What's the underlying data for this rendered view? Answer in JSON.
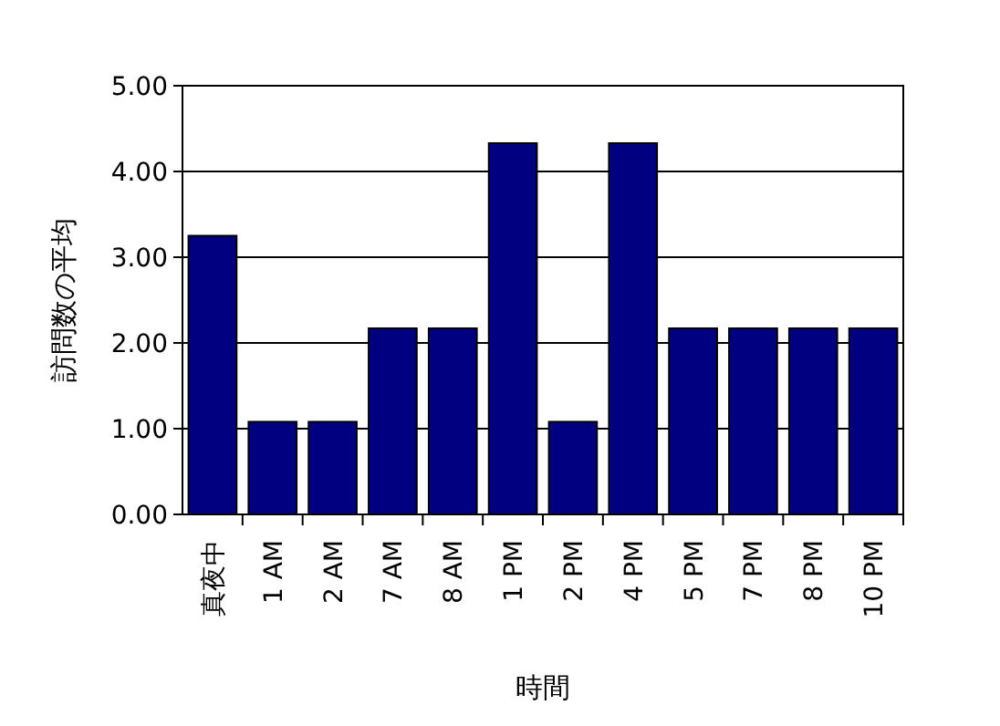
{
  "chart_data": {
    "type": "bar",
    "xlabel": "時間",
    "ylabel": "訪問数の平均",
    "categories": [
      "真夜中",
      "1 AM",
      "2 AM",
      "7 AM",
      "8 AM",
      "1 PM",
      "2 PM",
      "4 PM",
      "5 PM",
      "7 PM",
      "8 PM",
      "10 PM"
    ],
    "values": [
      3.25,
      1.08,
      1.08,
      2.17,
      2.17,
      4.33,
      1.08,
      4.33,
      2.17,
      2.17,
      2.17,
      2.17
    ],
    "color": "#000080",
    "ylim": [
      0,
      5
    ],
    "yticks": [
      {
        "value": 0,
        "label": "0.00"
      },
      {
        "value": 1,
        "label": "1.00"
      },
      {
        "value": 2,
        "label": "2.00"
      },
      {
        "value": 3,
        "label": "3.00"
      },
      {
        "value": 4,
        "label": "4.00"
      },
      {
        "value": 5,
        "label": "5.00"
      }
    ],
    "grid": true
  }
}
